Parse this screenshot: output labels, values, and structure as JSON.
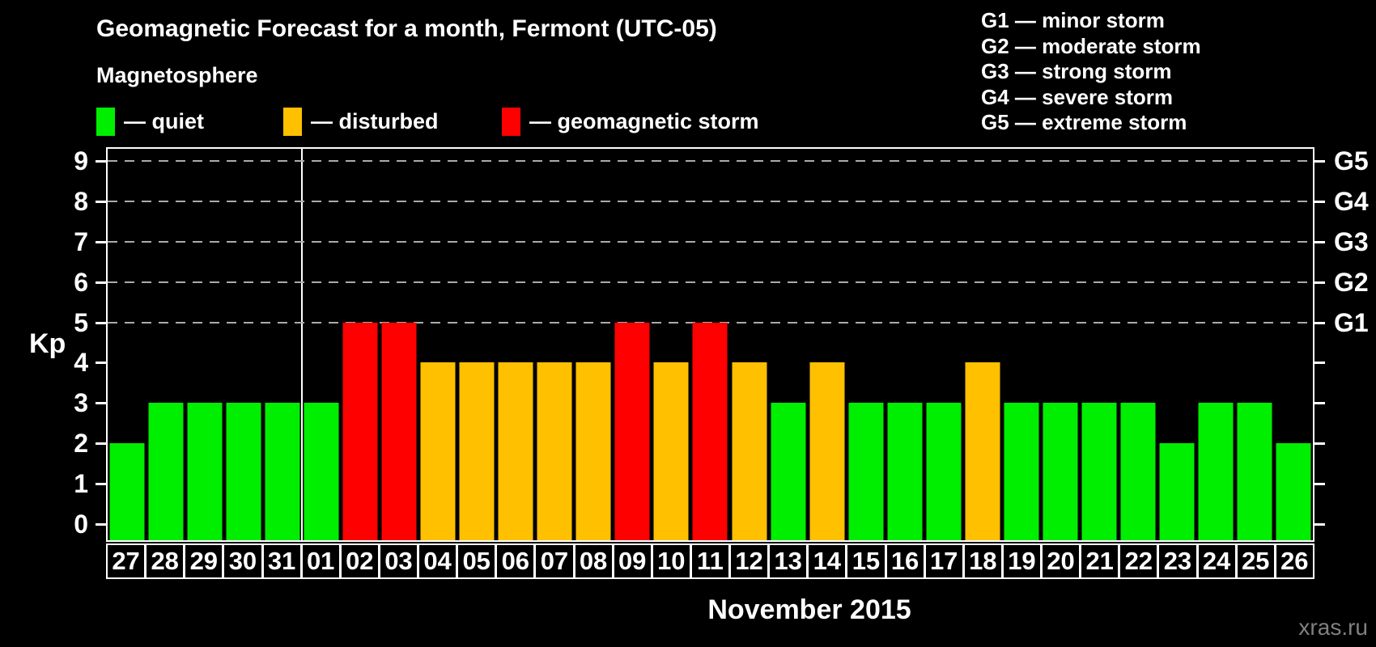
{
  "title": "Geomagnetic Forecast for a month, Fermont (UTC-05)",
  "subtitle": "Magnetosphere",
  "kp_axis_label": "Kp",
  "month_label": "November 2015",
  "watermark": "xras.ru",
  "colors": {
    "quiet": "#00ee00",
    "disturbed": "#ffc000",
    "storm": "#ff0000",
    "grid": "#ababab",
    "axis": "#ffffff",
    "background": "#000000",
    "watermark_gray": "#808080"
  },
  "legend": {
    "items": [
      {
        "status": "quiet",
        "label": "— quiet"
      },
      {
        "status": "disturbed",
        "label": "— disturbed"
      },
      {
        "status": "storm",
        "label": "— geomagnetic storm"
      }
    ]
  },
  "g_scale_legend": [
    "G1 — minor storm",
    "G2 — moderate storm",
    "G3 — strong storm",
    "G4 — severe storm",
    "G5 — extreme storm"
  ],
  "chart_data": {
    "type": "bar",
    "title": "Geomagnetic Forecast for a month, Fermont (UTC-05)",
    "xlabel": "November 2015",
    "ylabel": "Kp",
    "ylim": [
      0,
      9.4
    ],
    "yticks": [
      0,
      1,
      2,
      3,
      4,
      5,
      6,
      7,
      8,
      9
    ],
    "gridlines_at": [
      5,
      6,
      7,
      8,
      9
    ],
    "grid": "dashed-horizontal-at-storm-levels-only",
    "right_axis": {
      "ticks": [
        0,
        1,
        2,
        3,
        4,
        5,
        6,
        7,
        8,
        9
      ],
      "labels": [
        {
          "value": 5,
          "label": "G1"
        },
        {
          "value": 6,
          "label": "G2"
        },
        {
          "value": 7,
          "label": "G3"
        },
        {
          "value": 8,
          "label": "G4"
        },
        {
          "value": 9,
          "label": "G5"
        }
      ]
    },
    "month_boundary_after": "31",
    "month_boundary_after_index": 4,
    "categories": [
      "27",
      "28",
      "29",
      "30",
      "31",
      "01",
      "02",
      "03",
      "04",
      "05",
      "06",
      "07",
      "08",
      "09",
      "10",
      "11",
      "12",
      "13",
      "14",
      "15",
      "16",
      "17",
      "18",
      "19",
      "20",
      "21",
      "22",
      "23",
      "24",
      "25",
      "26"
    ],
    "values": [
      2,
      3,
      3,
      3,
      3,
      3,
      5,
      5,
      4,
      4,
      4,
      4,
      4,
      5,
      4,
      5,
      4,
      3,
      4,
      3,
      3,
      3,
      4,
      3,
      3,
      3,
      3,
      2,
      3,
      3,
      2
    ],
    "statuses": [
      "quiet",
      "quiet",
      "quiet",
      "quiet",
      "quiet",
      "quiet",
      "storm",
      "storm",
      "disturbed",
      "disturbed",
      "disturbed",
      "disturbed",
      "disturbed",
      "storm",
      "disturbed",
      "storm",
      "disturbed",
      "quiet",
      "disturbed",
      "quiet",
      "quiet",
      "quiet",
      "disturbed",
      "quiet",
      "quiet",
      "quiet",
      "quiet",
      "quiet",
      "quiet",
      "quiet",
      "quiet"
    ]
  }
}
